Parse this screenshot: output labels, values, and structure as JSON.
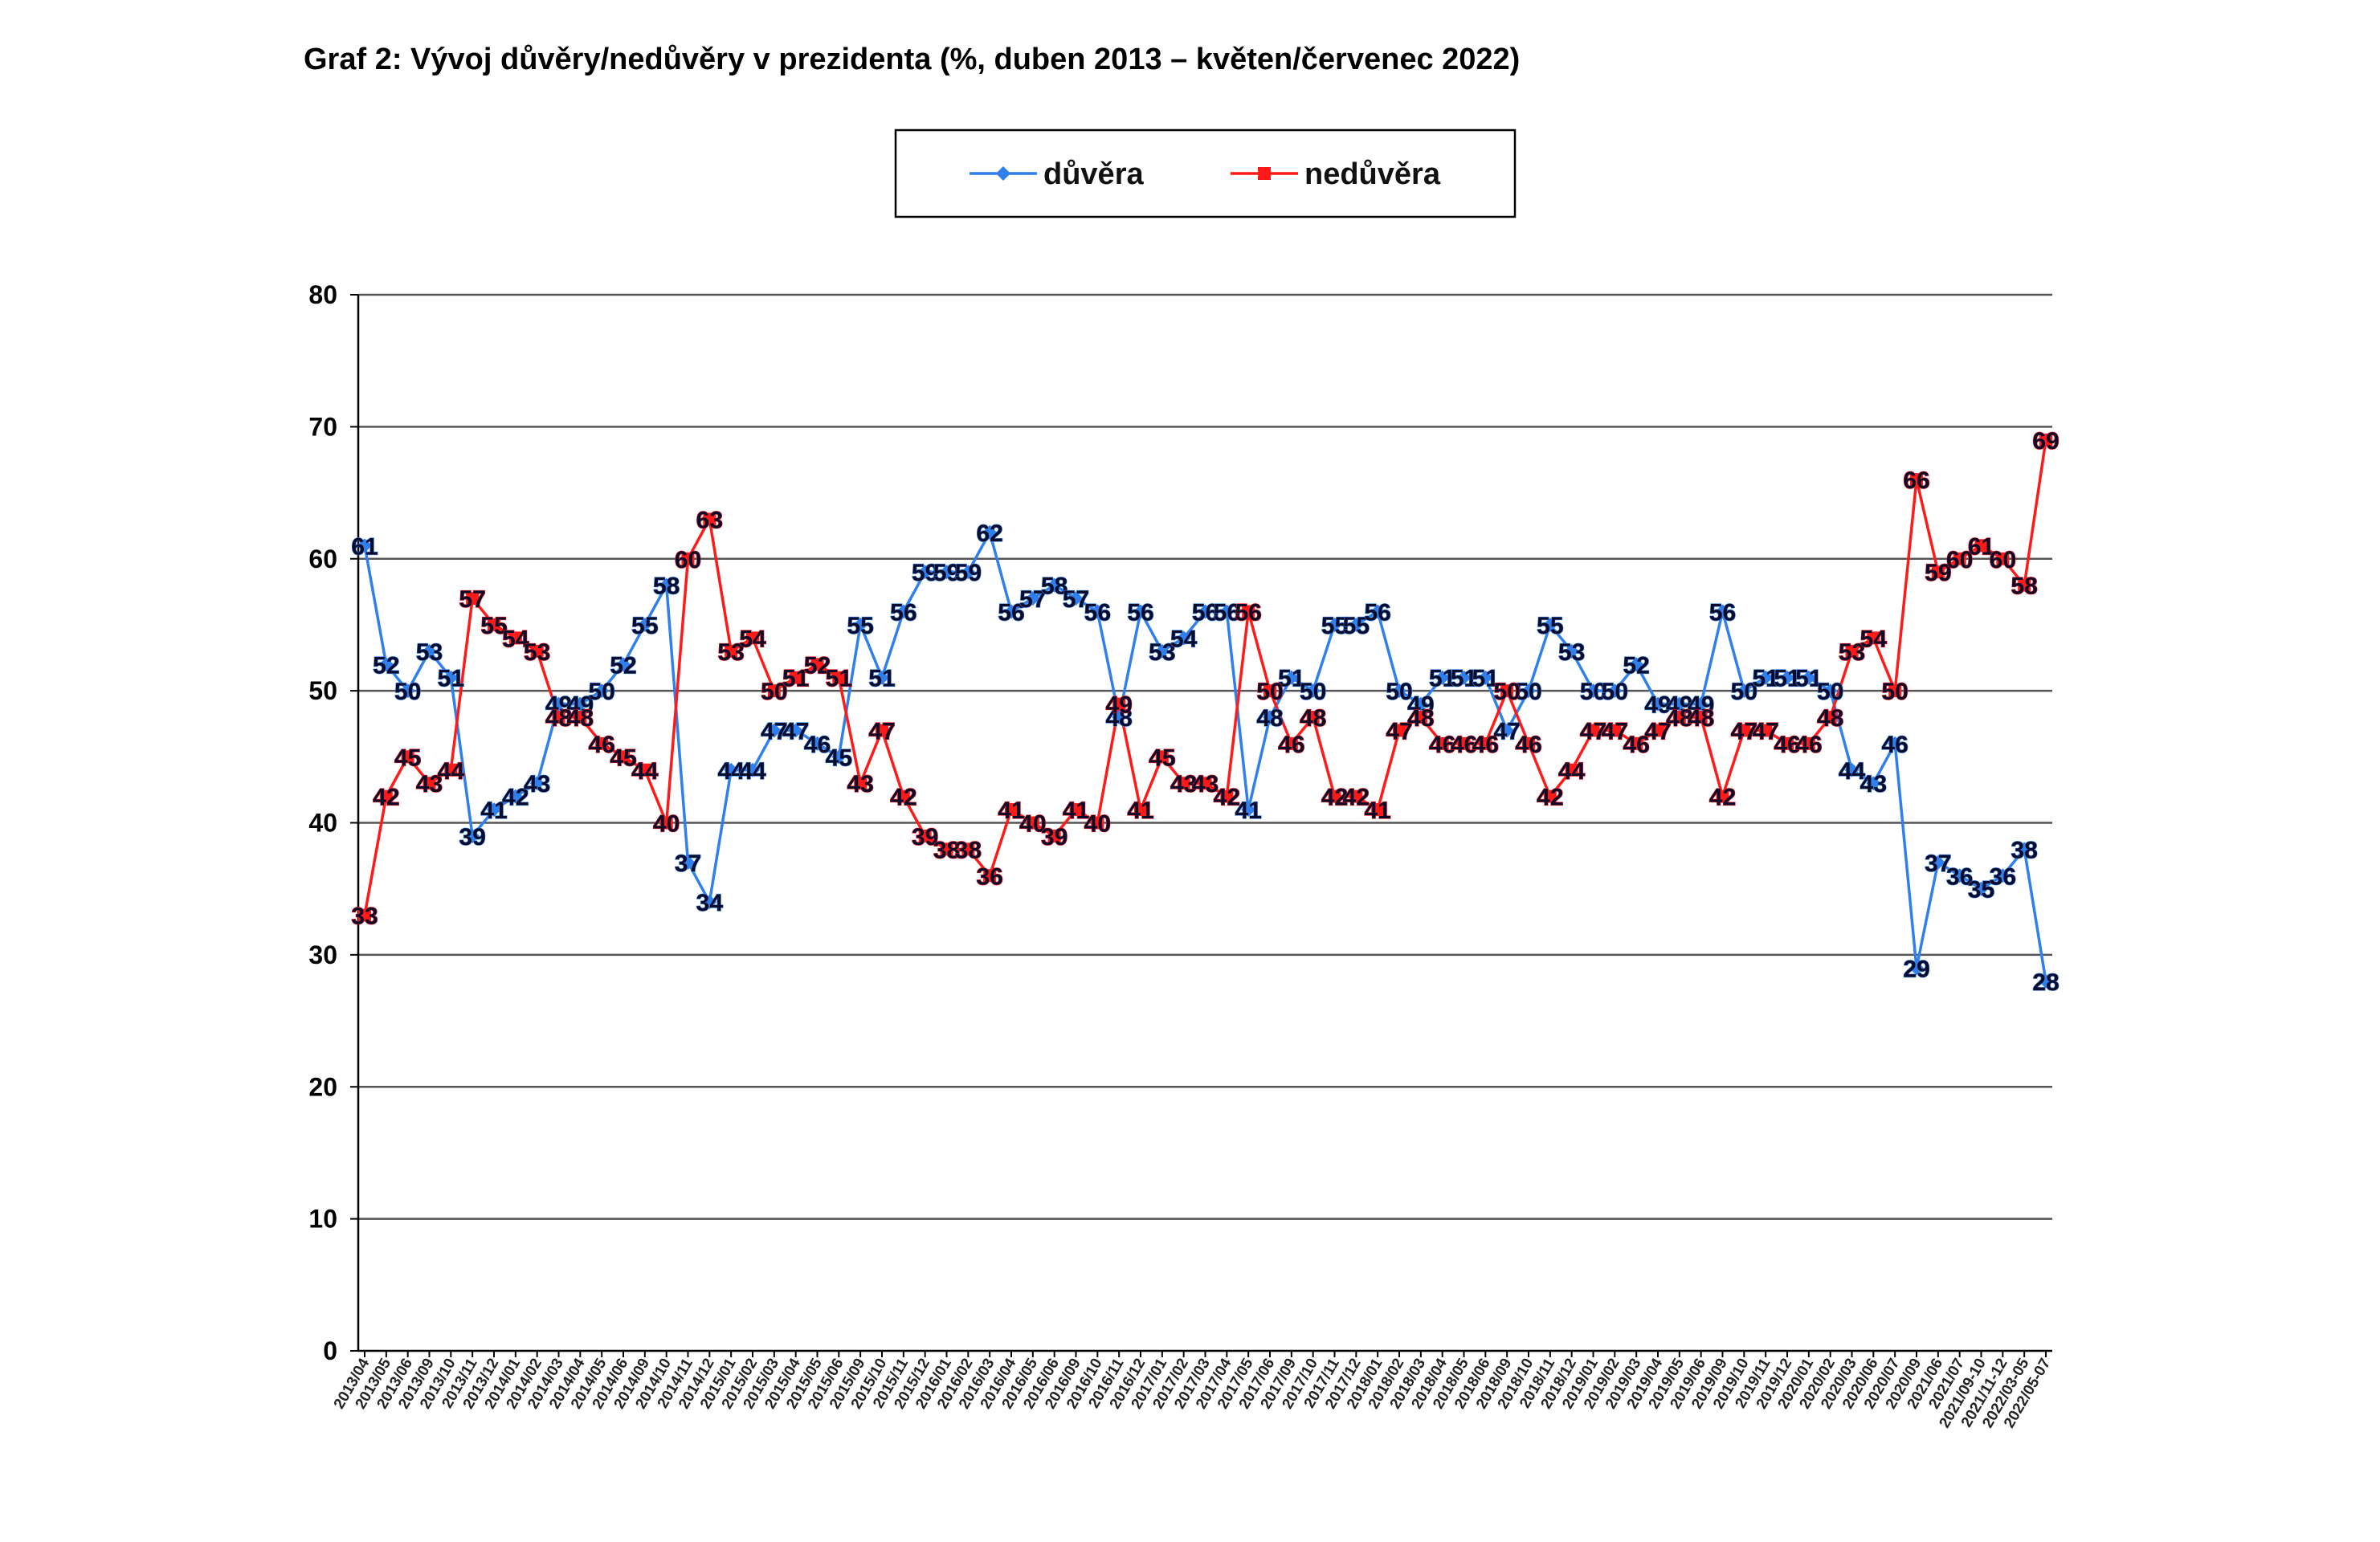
{
  "chart_data": {
    "type": "line",
    "title": "Graf 2: Vývoj důvěry/nedůvěry v prezidenta (%, duben 2013 – květen/červenec 2022)",
    "categories": [
      "2013/04",
      "2013/05",
      "2013/06",
      "2013/09",
      "2013/10",
      "2013/11",
      "2013/12",
      "2014/01",
      "2014/02",
      "2014/03",
      "2014/04",
      "2014/05",
      "2014/06",
      "2014/09",
      "2014/10",
      "2014/11",
      "2014/12",
      "2015/01",
      "2015/02",
      "2015/03",
      "2015/04",
      "2015/05",
      "2015/06",
      "2015/09",
      "2015/10",
      "2015/11",
      "2015/12",
      "2016/01",
      "2016/02",
      "2016/03",
      "2016/04",
      "2016/05",
      "2016/06",
      "2016/09",
      "2016/10",
      "2016/11",
      "2016/12",
      "2017/01",
      "2017/02",
      "2017/03",
      "2017/04",
      "2017/05",
      "2017/06",
      "2017/09",
      "2017/10",
      "2017/11",
      "2017/12",
      "2018/01",
      "2018/02",
      "2018/03",
      "2018/04",
      "2018/05",
      "2018/06",
      "2018/09",
      "2018/10",
      "2018/11",
      "2018/12",
      "2019/01",
      "2019/02",
      "2019/03",
      "2019/04",
      "2019/05",
      "2019/06",
      "2019/09",
      "2019/10",
      "2019/11",
      "2019/12",
      "2020/01",
      "2020/02",
      "2020/03",
      "2020/06",
      "2020/07",
      "2020/09",
      "2021/06",
      "2021/07",
      "2021/09-10",
      "2021/11-12",
      "2022/03-05",
      "2022/05-07"
    ],
    "series": [
      {
        "name": "důvěra",
        "color": "#2f80ed",
        "marker": "diamond",
        "values": [
          61,
          52,
          50,
          53,
          51,
          39,
          41,
          42,
          43,
          49,
          49,
          50,
          52,
          55,
          58,
          37,
          34,
          44,
          44,
          47,
          47,
          46,
          45,
          55,
          51,
          56,
          59,
          59,
          59,
          62,
          56,
          57,
          58,
          57,
          56,
          48,
          56,
          53,
          54,
          56,
          56,
          41,
          48,
          51,
          50,
          55,
          55,
          56,
          50,
          49,
          51,
          51,
          51,
          47,
          50,
          55,
          53,
          50,
          50,
          52,
          49,
          49,
          49,
          56,
          50,
          51,
          51,
          51,
          50,
          44,
          43,
          46,
          29,
          37,
          36,
          35,
          36,
          38,
          28
        ]
      },
      {
        "name": "nedůvěra",
        "color": "#ff1a1a",
        "marker": "square",
        "values": [
          33,
          42,
          45,
          43,
          44,
          57,
          55,
          54,
          53,
          48,
          48,
          46,
          45,
          44,
          40,
          60,
          63,
          53,
          54,
          50,
          51,
          52,
          51,
          43,
          47,
          42,
          39,
          38,
          38,
          36,
          41,
          40,
          39,
          41,
          40,
          49,
          41,
          45,
          43,
          43,
          42,
          56,
          50,
          46,
          48,
          42,
          42,
          41,
          47,
          48,
          46,
          46,
          46,
          50,
          46,
          42,
          44,
          47,
          47,
          46,
          47,
          48,
          48,
          42,
          47,
          47,
          46,
          46,
          48,
          53,
          54,
          50,
          66,
          59,
          60,
          61,
          60,
          58,
          69
        ]
      }
    ],
    "ylim": [
      0,
      80
    ],
    "yticks": [
      0,
      10,
      20,
      30,
      40,
      50,
      60,
      70,
      80
    ],
    "grid": true,
    "legend": "top"
  }
}
